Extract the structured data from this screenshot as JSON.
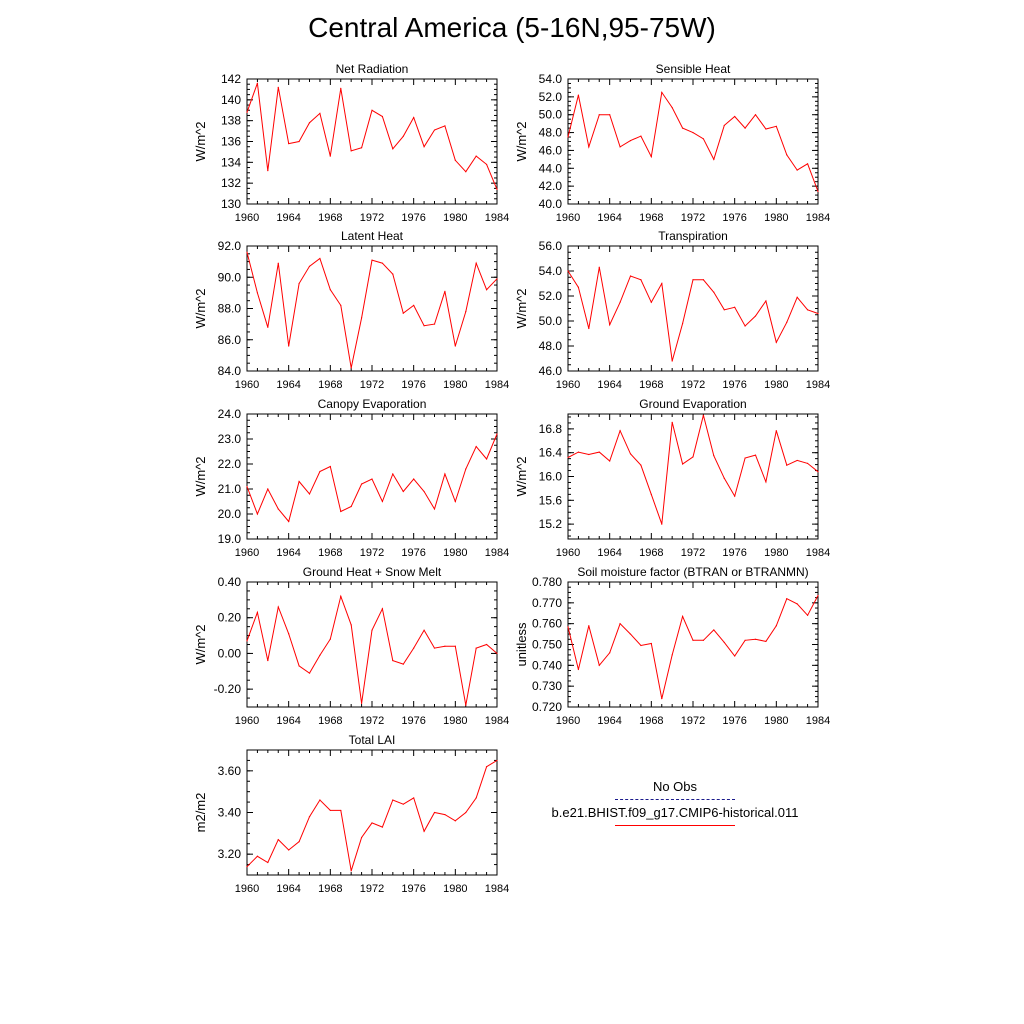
{
  "page": {
    "title": "Central America (5-16N,95-75W)"
  },
  "colors": {
    "series": "#ff0000",
    "axis": "#000000",
    "obs_legend": "#1a1a8c"
  },
  "legend": {
    "obs_label": "No Obs",
    "model_label": "b.e21.BHIST.f09_g17.CMIP6-historical.011"
  },
  "chart_data": [
    {
      "type": "line",
      "title": "Net Radiation",
      "ylabel": "W/m^2",
      "ylim": [
        130,
        142
      ],
      "yticks": [
        130,
        132,
        134,
        136,
        138,
        140,
        142
      ],
      "ydecimals": 0,
      "xlim": [
        1960,
        1984
      ],
      "xticks": [
        1960,
        1964,
        1968,
        1972,
        1976,
        1980,
        1984
      ],
      "x": [
        1960,
        1961,
        1962,
        1963,
        1964,
        1965,
        1966,
        1967,
        1968,
        1969,
        1970,
        1971,
        1972,
        1973,
        1974,
        1975,
        1976,
        1977,
        1978,
        1979,
        1980,
        1981,
        1982,
        1983,
        1984
      ],
      "values": [
        138.8,
        141.6,
        133.2,
        141.2,
        135.8,
        136.0,
        137.8,
        138.7,
        134.6,
        141.1,
        135.1,
        135.4,
        139.0,
        138.4,
        135.3,
        136.5,
        138.3,
        135.5,
        137.1,
        137.5,
        134.2,
        133.1,
        134.6,
        133.8,
        131.4
      ]
    },
    {
      "type": "line",
      "title": "Sensible Heat",
      "ylabel": "W/m^2",
      "ylim": [
        40,
        54
      ],
      "yticks": [
        40,
        42,
        44,
        46,
        48,
        50,
        52,
        54
      ],
      "ydecimals": 1,
      "xlim": [
        1960,
        1984
      ],
      "xticks": [
        1960,
        1964,
        1968,
        1972,
        1976,
        1980,
        1984
      ],
      "x": [
        1960,
        1961,
        1962,
        1963,
        1964,
        1965,
        1966,
        1967,
        1968,
        1969,
        1970,
        1971,
        1972,
        1973,
        1974,
        1975,
        1976,
        1977,
        1978,
        1979,
        1980,
        1981,
        1982,
        1983,
        1984
      ],
      "values": [
        47.5,
        52.2,
        46.4,
        50.0,
        50.0,
        46.4,
        47.1,
        47.6,
        45.3,
        52.5,
        50.8,
        48.5,
        48.0,
        47.3,
        45.0,
        48.8,
        49.8,
        48.5,
        50.0,
        48.4,
        48.7,
        45.5,
        43.8,
        44.5,
        41.4
      ]
    },
    {
      "type": "line",
      "title": "Latent Heat",
      "ylabel": "W/m^2",
      "ylim": [
        84,
        92
      ],
      "yticks": [
        84,
        86,
        88,
        90,
        92
      ],
      "ydecimals": 1,
      "xlim": [
        1960,
        1984
      ],
      "xticks": [
        1960,
        1964,
        1968,
        1972,
        1976,
        1980,
        1984
      ],
      "x": [
        1960,
        1961,
        1962,
        1963,
        1964,
        1965,
        1966,
        1967,
        1968,
        1969,
        1970,
        1971,
        1972,
        1973,
        1974,
        1975,
        1976,
        1977,
        1978,
        1979,
        1980,
        1981,
        1982,
        1983,
        1984
      ],
      "values": [
        91.6,
        89.0,
        86.8,
        90.9,
        85.6,
        89.6,
        90.7,
        91.2,
        89.2,
        88.2,
        84.2,
        87.4,
        91.1,
        90.9,
        90.2,
        87.7,
        88.2,
        86.9,
        87.0,
        89.1,
        85.6,
        87.8,
        90.9,
        89.2,
        89.9
      ]
    },
    {
      "type": "line",
      "title": "Transpiration",
      "ylabel": "W/m^2",
      "ylim": [
        46,
        56
      ],
      "yticks": [
        46,
        48,
        50,
        52,
        54,
        56
      ],
      "ydecimals": 1,
      "xlim": [
        1960,
        1984
      ],
      "xticks": [
        1960,
        1964,
        1968,
        1972,
        1976,
        1980,
        1984
      ],
      "x": [
        1960,
        1961,
        1962,
        1963,
        1964,
        1965,
        1966,
        1967,
        1968,
        1969,
        1970,
        1971,
        1972,
        1973,
        1974,
        1975,
        1976,
        1977,
        1978,
        1979,
        1980,
        1981,
        1982,
        1983,
        1984
      ],
      "values": [
        54.0,
        52.7,
        49.4,
        54.3,
        49.7,
        51.5,
        53.6,
        53.3,
        51.5,
        53.0,
        46.8,
        49.8,
        53.3,
        53.3,
        52.3,
        50.9,
        51.1,
        49.6,
        50.4,
        51.6,
        48.3,
        49.9,
        51.9,
        50.9,
        50.6
      ]
    },
    {
      "type": "line",
      "title": "Canopy Evaporation",
      "ylabel": "W/m^2",
      "ylim": [
        19,
        24
      ],
      "yticks": [
        19,
        20,
        21,
        22,
        23,
        24
      ],
      "ydecimals": 1,
      "xlim": [
        1960,
        1984
      ],
      "xticks": [
        1960,
        1964,
        1968,
        1972,
        1976,
        1980,
        1984
      ],
      "x": [
        1960,
        1961,
        1962,
        1963,
        1964,
        1965,
        1966,
        1967,
        1968,
        1969,
        1970,
        1971,
        1972,
        1973,
        1974,
        1975,
        1976,
        1977,
        1978,
        1979,
        1980,
        1981,
        1982,
        1983,
        1984
      ],
      "values": [
        21.1,
        20.0,
        21.0,
        20.2,
        19.7,
        21.3,
        20.8,
        21.7,
        21.9,
        20.1,
        20.3,
        21.2,
        21.4,
        20.5,
        21.6,
        20.9,
        21.4,
        20.9,
        20.2,
        21.6,
        20.5,
        21.8,
        22.7,
        22.2,
        23.2
      ]
    },
    {
      "type": "line",
      "title": "Ground Evaporation",
      "ylabel": "W/m^2",
      "ylim": [
        14.95,
        17.05
      ],
      "yticks": [
        15.2,
        15.6,
        16.0,
        16.4,
        16.8
      ],
      "ydecimals": 1,
      "xlim": [
        1960,
        1984
      ],
      "xticks": [
        1960,
        1964,
        1968,
        1972,
        1976,
        1980,
        1984
      ],
      "x": [
        1960,
        1961,
        1962,
        1963,
        1964,
        1965,
        1966,
        1967,
        1968,
        1969,
        1970,
        1971,
        1972,
        1973,
        1974,
        1975,
        1976,
        1977,
        1978,
        1979,
        1980,
        1981,
        1982,
        1983,
        1984
      ],
      "values": [
        16.32,
        16.41,
        16.37,
        16.41,
        16.26,
        16.77,
        16.38,
        16.19,
        15.7,
        15.2,
        16.91,
        16.21,
        16.33,
        17.03,
        16.35,
        15.97,
        15.67,
        16.31,
        16.36,
        15.91,
        16.77,
        16.19,
        16.27,
        16.22,
        16.08
      ]
    },
    {
      "type": "line",
      "title": "Ground Heat + Snow Melt",
      "ylabel": "W/m^2",
      "ylim": [
        -0.3,
        0.4
      ],
      "yticks": [
        -0.2,
        0.0,
        0.2,
        0.4
      ],
      "ydecimals": 2,
      "xlim": [
        1960,
        1984
      ],
      "xticks": [
        1960,
        1964,
        1968,
        1972,
        1976,
        1980,
        1984
      ],
      "x": [
        1960,
        1961,
        1962,
        1963,
        1964,
        1965,
        1966,
        1967,
        1968,
        1969,
        1970,
        1971,
        1972,
        1973,
        1974,
        1975,
        1976,
        1977,
        1978,
        1979,
        1980,
        1981,
        1982,
        1983,
        1984
      ],
      "values": [
        0.07,
        0.23,
        -0.04,
        0.26,
        0.11,
        -0.07,
        -0.11,
        -0.01,
        0.08,
        0.32,
        0.16,
        -0.28,
        0.13,
        0.25,
        -0.04,
        -0.06,
        0.03,
        0.13,
        0.03,
        0.04,
        0.04,
        -0.29,
        0.03,
        0.05,
        0.0
      ]
    },
    {
      "type": "line",
      "title": "Soil moisture factor (BTRAN or BTRANMN)",
      "ylabel": "unitless",
      "ylim": [
        0.72,
        0.78
      ],
      "yticks": [
        0.72,
        0.73,
        0.74,
        0.75,
        0.76,
        0.77,
        0.78
      ],
      "ydecimals": 3,
      "xlim": [
        1960,
        1984
      ],
      "xticks": [
        1960,
        1964,
        1968,
        1972,
        1976,
        1980,
        1984
      ],
      "x": [
        1960,
        1961,
        1962,
        1963,
        1964,
        1965,
        1966,
        1967,
        1968,
        1969,
        1970,
        1971,
        1972,
        1973,
        1974,
        1975,
        1976,
        1977,
        1978,
        1979,
        1980,
        1981,
        1982,
        1983,
        1984
      ],
      "values": [
        0.7585,
        0.738,
        0.759,
        0.74,
        0.746,
        0.76,
        0.755,
        0.7495,
        0.7505,
        0.724,
        0.745,
        0.7635,
        0.752,
        0.752,
        0.757,
        0.751,
        0.7445,
        0.752,
        0.7525,
        0.7515,
        0.759,
        0.772,
        0.7695,
        0.764,
        0.7735
      ]
    },
    {
      "type": "line",
      "title": "Total LAI",
      "ylabel": "m2/m2",
      "ylim": [
        3.1,
        3.7
      ],
      "yticks": [
        3.2,
        3.4,
        3.6
      ],
      "ydecimals": 2,
      "xlim": [
        1960,
        1984
      ],
      "xticks": [
        1960,
        1964,
        1968,
        1972,
        1976,
        1980,
        1984
      ],
      "x": [
        1960,
        1961,
        1962,
        1963,
        1964,
        1965,
        1966,
        1967,
        1968,
        1969,
        1970,
        1971,
        1972,
        1973,
        1974,
        1975,
        1976,
        1977,
        1978,
        1979,
        1980,
        1981,
        1982,
        1983,
        1984
      ],
      "values": [
        3.14,
        3.19,
        3.16,
        3.27,
        3.22,
        3.26,
        3.38,
        3.46,
        3.41,
        3.41,
        3.12,
        3.28,
        3.35,
        3.33,
        3.46,
        3.44,
        3.47,
        3.31,
        3.4,
        3.39,
        3.36,
        3.4,
        3.47,
        3.62,
        3.65
      ]
    }
  ]
}
